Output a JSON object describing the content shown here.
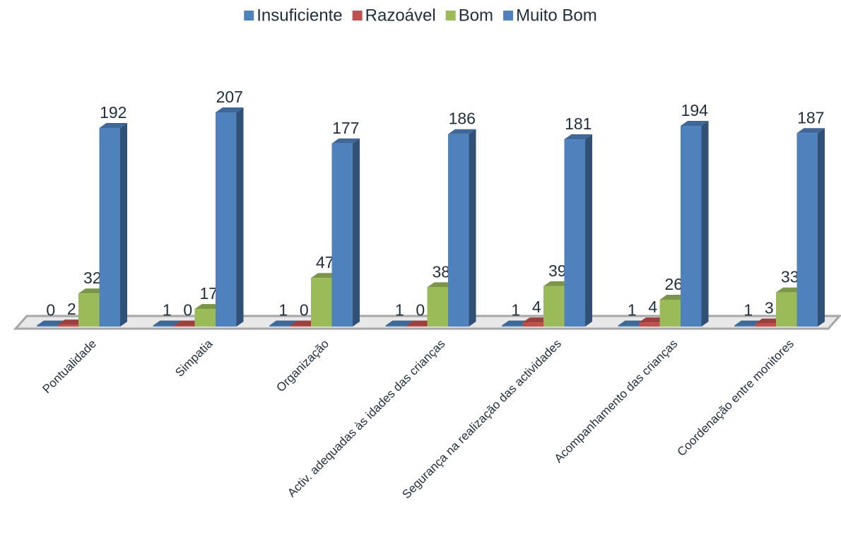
{
  "chart_data": {
    "type": "bar3d",
    "categories": [
      "Pontualidade",
      "Simpatia",
      "Organização",
      "Activ. adequadas às  idades das crianças",
      "Segurança na realização das actividades",
      "Acompanhamento das crianças",
      "Coordenação entre monitores"
    ],
    "series": [
      {
        "name": "Insuficiente",
        "color": "#4f81bd",
        "values": [
          0,
          1,
          1,
          1,
          1,
          1,
          1
        ]
      },
      {
        "name": "Razoável",
        "color": "#c0504d",
        "values": [
          2,
          0,
          0,
          0,
          4,
          4,
          3
        ]
      },
      {
        "name": "Bom",
        "color": "#9bbb59",
        "values": [
          32,
          17,
          47,
          38,
          39,
          26,
          33
        ]
      },
      {
        "name": "Muito Bom",
        "color": "#4f81bd",
        "values": [
          192,
          207,
          177,
          186,
          181,
          194,
          187
        ]
      }
    ],
    "legend": "top"
  }
}
